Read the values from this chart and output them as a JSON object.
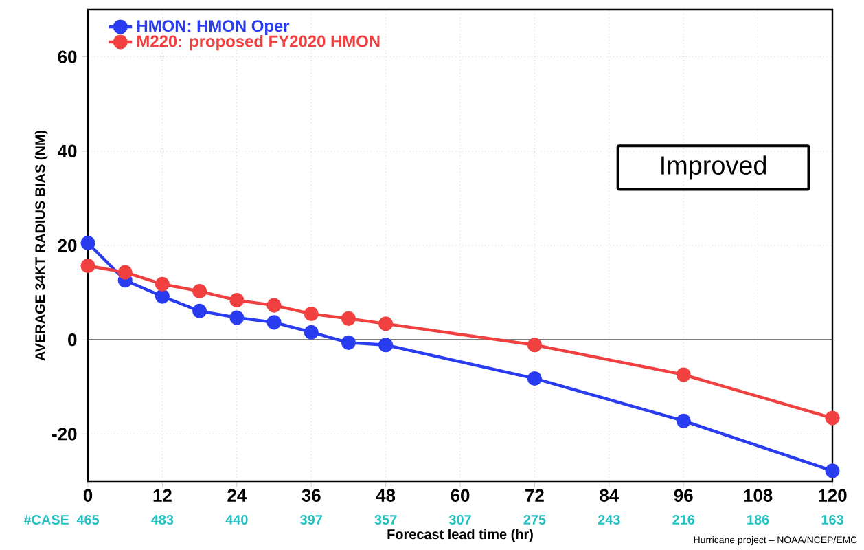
{
  "chart_data": {
    "type": "line",
    "xlabel": "Forecast lead time (hr)",
    "ylabel": "AVERAGE 34KT RADIUS BIAS (NM)",
    "x": [
      0,
      6,
      12,
      18,
      24,
      30,
      36,
      42,
      48,
      72,
      96,
      120
    ],
    "series": [
      {
        "name": "HMON: HMON Oper",
        "color": "#2a3cf0",
        "values": [
          20.5,
          12.6,
          9.2,
          6.1,
          4.7,
          3.7,
          1.6,
          -0.6,
          -1.1,
          -8.2,
          -17.2,
          -27.8
        ]
      },
      {
        "name": "M220: proposed FY2020 HMON",
        "color": "#f04040",
        "values": [
          15.7,
          14.3,
          11.8,
          10.3,
          8.4,
          7.3,
          5.5,
          4.5,
          3.4,
          -1.1,
          -7.4,
          -16.6
        ]
      }
    ],
    "xlim": [
      0,
      120
    ],
    "xticks": [
      0,
      12,
      24,
      36,
      48,
      60,
      72,
      84,
      96,
      108,
      120
    ],
    "ylim": [
      -30,
      70
    ],
    "yticks": [
      -20,
      0,
      20,
      40,
      60
    ],
    "ref_lines": [
      {
        "axis": "y",
        "value": 0,
        "color": "#000000"
      }
    ],
    "grid": true,
    "legend": "top left",
    "marker": "circle",
    "line_style": "solid",
    "annotations": [
      "#CASE",
      "Improved",
      "Hurricane project – NOAA/NCEP/EMC",
      "465",
      "483",
      "440",
      "397",
      "357",
      "307",
      "275",
      "243",
      "216",
      "186",
      "163"
    ]
  }
}
